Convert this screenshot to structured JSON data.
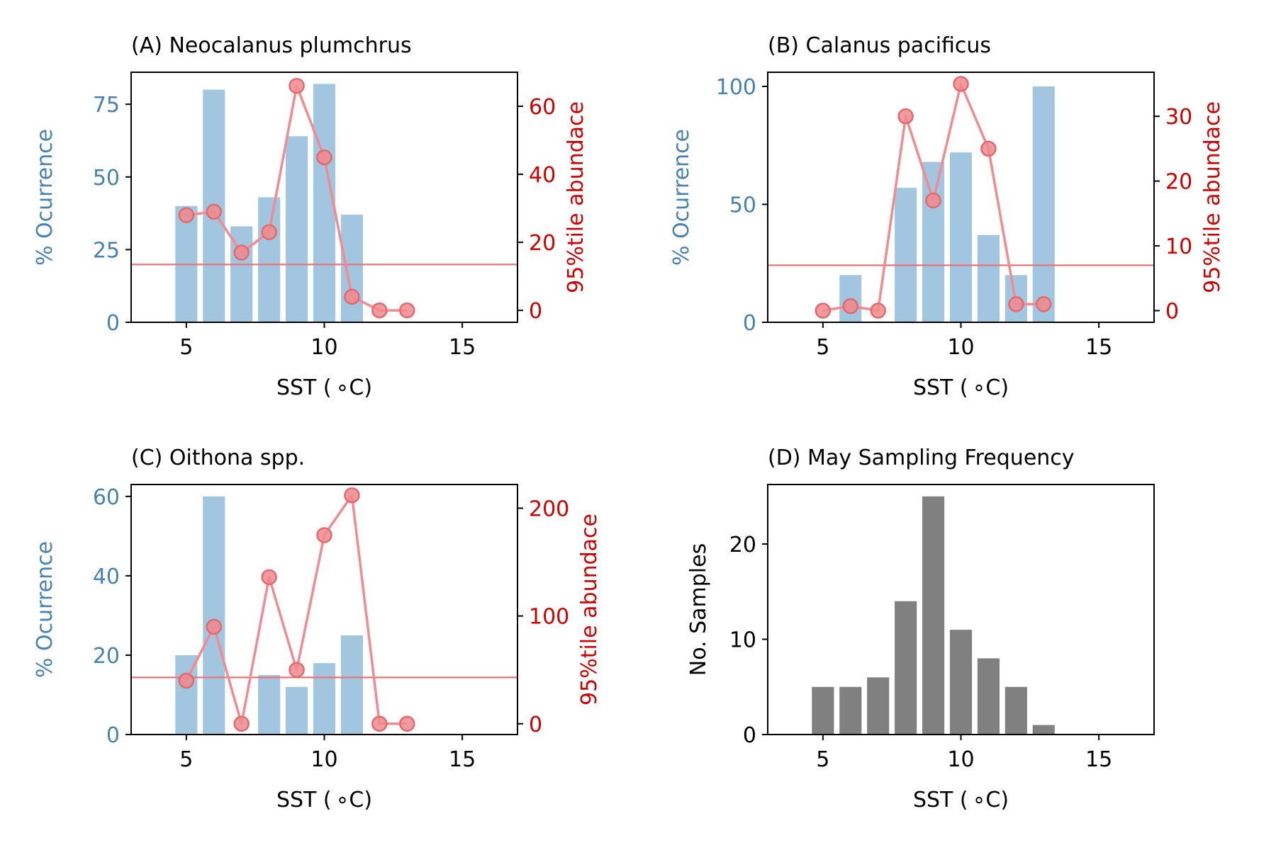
{
  "colors": {
    "occurrence": "#4682b4",
    "occurrence_bar": "#a3c6e0",
    "abundance": "#d00000",
    "abundance_line": "#f28b8f",
    "abundance_marker_fill": "#f08a8e",
    "abundance_marker_edge": "#e06a6e",
    "threshold": "#e87478",
    "samples_bar": "#808080",
    "axis": "#000000"
  },
  "chart_data": [
    {
      "type": "bar",
      "title": "(A) Neocalanus plumchrus",
      "xlabel": "SST ($^\\circ$C)",
      "xlabel_display": "SST ( ∘C)",
      "ylabel": "% Ocurrence",
      "y2label": "95%tile abundace",
      "xlim": [
        3,
        17
      ],
      "ylim": [
        0,
        86
      ],
      "y2lim": [
        -3.5,
        70
      ],
      "xticks": [
        5,
        10,
        15
      ],
      "yticks": [
        0,
        25,
        50,
        75
      ],
      "y2ticks": [
        0,
        20,
        40,
        60
      ],
      "bars": {
        "x": [
          5,
          6,
          7,
          8,
          9,
          10,
          11
        ],
        "values": [
          40,
          80,
          33,
          43,
          64,
          82,
          37
        ]
      },
      "line": {
        "x": [
          5,
          6,
          7,
          8,
          9,
          10,
          11,
          12,
          13
        ],
        "values": [
          28,
          29,
          17,
          23,
          66,
          45,
          4,
          0,
          0
        ]
      },
      "threshold": 13.5
    },
    {
      "type": "bar",
      "title": "(B) Calanus pacificus",
      "xlabel": "SST ($^\\circ$C)",
      "xlabel_display": "SST ( ∘C)",
      "ylabel": "% Ocurrence",
      "y2label": "95%tile abundace",
      "xlim": [
        3,
        17
      ],
      "ylim": [
        0,
        106
      ],
      "y2lim": [
        -1.8,
        36.8
      ],
      "xticks": [
        5,
        10,
        15
      ],
      "yticks": [
        0,
        50,
        100
      ],
      "y2ticks": [
        0,
        10,
        20,
        30
      ],
      "bars": {
        "x": [
          6,
          8,
          9,
          10,
          11,
          12,
          13
        ],
        "values": [
          20,
          57,
          68,
          72,
          37,
          20,
          100
        ]
      },
      "line": {
        "x": [
          5,
          6,
          7,
          8,
          9,
          10,
          11,
          12,
          13
        ],
        "values": [
          0,
          0.7,
          0,
          30,
          17,
          35,
          25,
          1,
          1
        ]
      },
      "threshold": 7
    },
    {
      "type": "bar",
      "title": "(C) Oithona spp.",
      "xlabel": "SST ($^\\circ$C)",
      "xlabel_display": "SST ( ∘C)",
      "ylabel": "% Ocurrence",
      "y2label": "95%tile abundace",
      "xlim": [
        3,
        17
      ],
      "ylim": [
        0,
        63
      ],
      "y2lim": [
        -10,
        222
      ],
      "xticks": [
        5,
        10,
        15
      ],
      "yticks": [
        0,
        20,
        40,
        60
      ],
      "y2ticks": [
        0,
        100,
        200
      ],
      "bars": {
        "x": [
          5,
          6,
          8,
          9,
          10,
          11
        ],
        "values": [
          20,
          60,
          15,
          12,
          18,
          25
        ]
      },
      "line": {
        "x": [
          5,
          6,
          7,
          8,
          9,
          10,
          11,
          12,
          13
        ],
        "values": [
          40,
          90,
          0,
          136,
          50,
          175,
          212,
          0,
          0
        ]
      },
      "threshold": 43
    },
    {
      "type": "bar",
      "title": "(D) May Sampling Frequency",
      "xlabel": "SST ($^\\circ$C)",
      "xlabel_display": "SST ( ∘C)",
      "ylabel": "No. Samples",
      "xlim": [
        3,
        17
      ],
      "ylim": [
        0,
        26.25
      ],
      "xticks": [
        5,
        10,
        15
      ],
      "yticks": [
        0,
        10,
        20
      ],
      "bars": {
        "x": [
          5,
          6,
          7,
          8,
          9,
          10,
          11,
          12,
          13
        ],
        "values": [
          5,
          5,
          6,
          14,
          25,
          11,
          8,
          5,
          1
        ]
      }
    }
  ]
}
